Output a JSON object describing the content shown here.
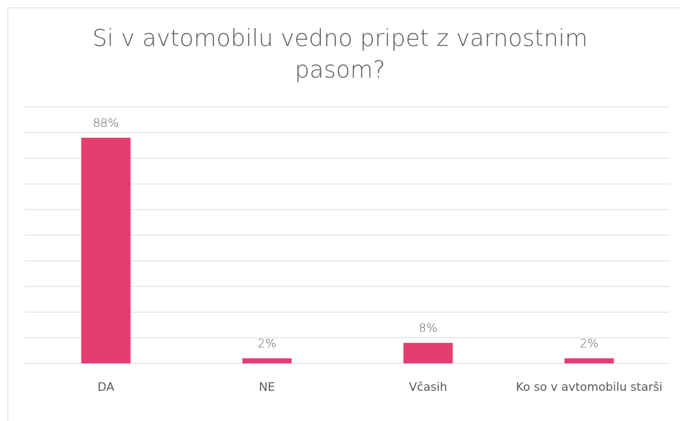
{
  "chart_data": {
    "type": "bar",
    "title": "Si v avtomobilu vedno pripet z varnostnim pasom?",
    "categories": [
      "DA",
      "NE",
      "Včasih",
      "Ko so v avtomobilu starši"
    ],
    "values": [
      88,
      2,
      8,
      2
    ],
    "value_labels": [
      "88%",
      "2%",
      "8%",
      "2%"
    ],
    "color": "#e43d6f",
    "ylim": [
      0,
      100
    ],
    "yticks": [
      0,
      10,
      20,
      30,
      40,
      50,
      60,
      70,
      80,
      90,
      100
    ],
    "grid": true
  }
}
